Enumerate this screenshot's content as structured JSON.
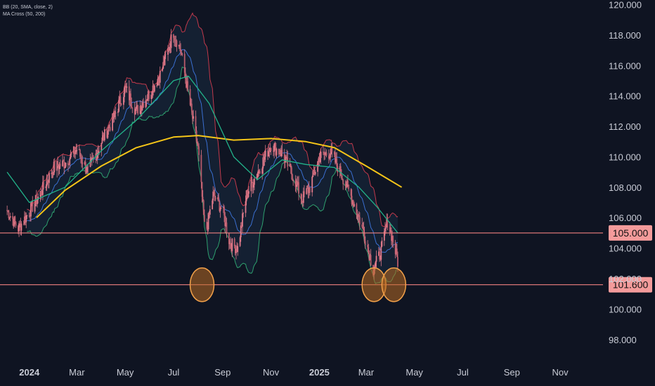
{
  "legend": {
    "line1": "BB (20, SMA, close, 2)",
    "line2": "MA Cross (50, 200)"
  },
  "colors": {
    "background": "#0f1422",
    "candle": "#e07a8a",
    "bb_upper": "#c0394b",
    "bb_lower": "#2e9f6e",
    "bb_basis": "#3a6fd1",
    "bb_fill": "#1a2a40",
    "ma50": "#22b38a",
    "ma200": "#f5c518",
    "hline": "#f08080",
    "hline_label_bg": "#f49b9b",
    "circle_fill": "#b86a22",
    "circle_stroke": "#f2a14a"
  },
  "chart_data": {
    "type": "line",
    "title": "",
    "xlabel": "",
    "ylabel": "",
    "ylim": [
      96.7,
      120.3
    ],
    "yticks": [
      "98.000",
      "100.000",
      "102.000",
      "104.000",
      "106.000",
      "108.000",
      "110.000",
      "112.000",
      "114.000",
      "116.000",
      "118.000",
      "120.000"
    ],
    "xticks": [
      {
        "label": "2024",
        "bold": true,
        "date": "2024-01-01"
      },
      {
        "label": "Mar",
        "bold": false,
        "date": "2024-03-01"
      },
      {
        "label": "May",
        "bold": false,
        "date": "2024-05-01"
      },
      {
        "label": "Jul",
        "bold": false,
        "date": "2024-07-01"
      },
      {
        "label": "Sep",
        "bold": false,
        "date": "2024-09-01"
      },
      {
        "label": "Nov",
        "bold": false,
        "date": "2024-11-01"
      },
      {
        "label": "2025",
        "bold": true,
        "date": "2025-01-01"
      },
      {
        "label": "Mar",
        "bold": false,
        "date": "2025-03-01"
      },
      {
        "label": "May",
        "bold": false,
        "date": "2025-05-01"
      },
      {
        "label": "Jul",
        "bold": false,
        "date": "2025-07-01"
      },
      {
        "label": "Sep",
        "bold": false,
        "date": "2025-09-01"
      },
      {
        "label": "Nov",
        "bold": false,
        "date": "2025-11-01"
      }
    ],
    "price_path": [
      [
        "2023-12-04",
        106.5
      ],
      [
        "2023-12-18",
        105.3
      ],
      [
        "2024-01-01",
        106.4
      ],
      [
        "2024-01-15",
        107.6
      ],
      [
        "2024-02-01",
        109.3
      ],
      [
        "2024-02-15",
        109.6
      ],
      [
        "2024-03-01",
        110.5
      ],
      [
        "2024-03-15",
        109.0
      ],
      [
        "2024-04-01",
        111.0
      ],
      [
        "2024-04-15",
        112.4
      ],
      [
        "2024-05-01",
        114.5
      ],
      [
        "2024-05-15",
        113.0
      ],
      [
        "2024-06-01",
        114.2
      ],
      [
        "2024-06-15",
        115.5
      ],
      [
        "2024-07-01",
        118.2
      ],
      [
        "2024-07-10",
        117.0
      ],
      [
        "2024-07-20",
        114.0
      ],
      [
        "2024-08-01",
        110.5
      ],
      [
        "2024-08-10",
        104.8
      ],
      [
        "2024-08-20",
        107.5
      ],
      [
        "2024-09-01",
        106.5
      ],
      [
        "2024-09-10",
        104.3
      ],
      [
        "2024-09-20",
        104.0
      ],
      [
        "2024-10-01",
        107.5
      ],
      [
        "2024-10-15",
        109.0
      ],
      [
        "2024-11-01",
        110.8
      ],
      [
        "2024-11-15",
        110.2
      ],
      [
        "2024-12-01",
        108.5
      ],
      [
        "2024-12-10",
        107.2
      ],
      [
        "2024-12-20",
        108.0
      ],
      [
        "2025-01-01",
        110.0
      ],
      [
        "2025-01-15",
        110.3
      ],
      [
        "2025-02-01",
        108.5
      ],
      [
        "2025-02-15",
        106.8
      ],
      [
        "2025-03-01",
        104.5
      ],
      [
        "2025-03-10",
        102.6
      ],
      [
        "2025-03-20",
        103.8
      ],
      [
        "2025-03-28",
        105.8
      ],
      [
        "2025-04-04",
        104.5
      ],
      [
        "2025-04-10",
        103.1
      ]
    ],
    "series": [
      {
        "values": [
          [
            "2024-01-10",
            106.0
          ],
          [
            "2024-02-15",
            107.8
          ],
          [
            "2024-04-01",
            109.4
          ],
          [
            "2024-05-15",
            110.6
          ],
          [
            "2024-07-01",
            111.3
          ],
          [
            "2024-08-01",
            111.4
          ],
          [
            "2024-09-15",
            111.1
          ],
          [
            "2024-11-01",
            111.2
          ],
          [
            "2024-12-15",
            111.0
          ],
          [
            "2025-01-20",
            110.6
          ],
          [
            "2025-03-01",
            109.4
          ],
          [
            "2025-04-15",
            108.0
          ]
        ]
      },
      {
        "values": [
          [
            "2023-12-04",
            109.0
          ],
          [
            "2024-01-01",
            107.0
          ],
          [
            "2024-02-15",
            108.0
          ],
          [
            "2024-04-01",
            110.4
          ],
          [
            "2024-05-15",
            112.4
          ],
          [
            "2024-07-01",
            115.0
          ],
          [
            "2024-07-20",
            115.3
          ],
          [
            "2024-08-15",
            113.5
          ],
          [
            "2024-09-15",
            110.0
          ],
          [
            "2024-10-15",
            108.5
          ],
          [
            "2024-11-15",
            109.8
          ],
          [
            "2024-12-15",
            109.5
          ],
          [
            "2025-01-20",
            109.3
          ],
          [
            "2025-02-20",
            108.0
          ],
          [
            "2025-03-15",
            106.7
          ],
          [
            "2025-04-10",
            105.0
          ]
        ]
      }
    ],
    "horizontal_levels": [
      {
        "value": 105.0,
        "label": "105.000"
      },
      {
        "value": 101.6,
        "label": "101.600"
      }
    ],
    "highlighted_lows": [
      {
        "date": "2024-08-06",
        "value": 101.6
      },
      {
        "date": "2025-03-11",
        "value": 101.6
      },
      {
        "date": "2025-04-05",
        "value": 101.6
      }
    ]
  }
}
